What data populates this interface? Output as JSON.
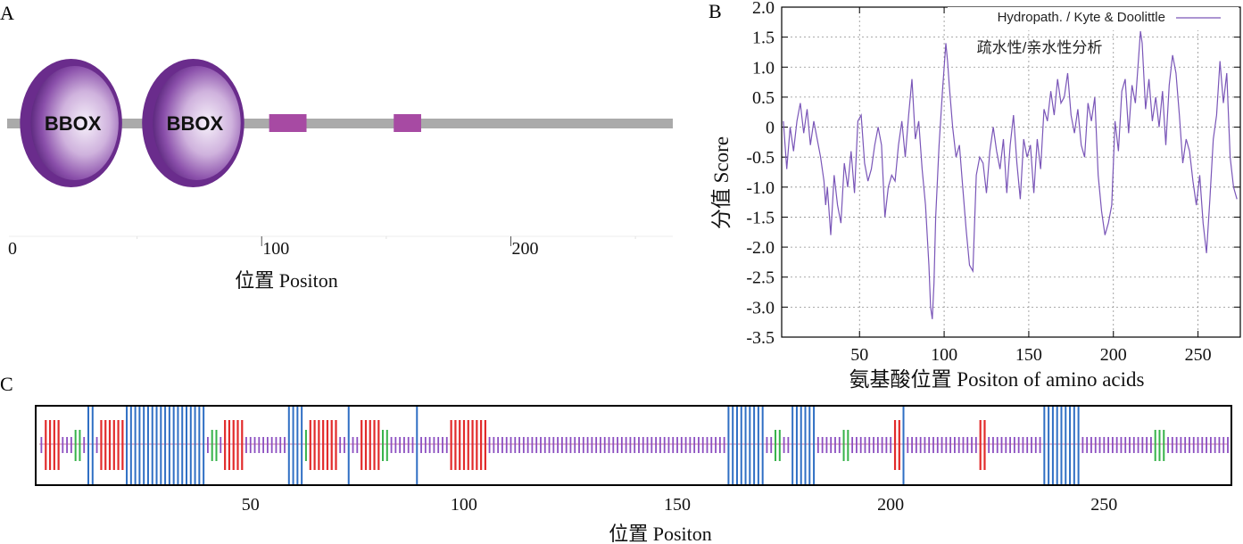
{
  "panel_letters": [
    "A",
    "B",
    "C"
  ],
  "colors": {
    "bbox_dark": "#6a2c8c",
    "bbox_light": "#f4eef8",
    "motif": "#a74aa3",
    "backbone": "#aaaaaa",
    "hydro_line": "#7a56b8",
    "coil": "#8c4fc1",
    "helix": "#2f6fc4",
    "strand": "#e22b2b",
    "turn": "#36b34a"
  },
  "chart_data": [
    {
      "type": "domain-map",
      "panel": "A",
      "xlabel": "位置 Positon",
      "xlim": [
        0,
        265
      ],
      "ticks": [
        {
          "value": 0,
          "label": "0"
        },
        {
          "value": 100,
          "label": "100"
        },
        {
          "value": 200,
          "label": "200"
        }
      ],
      "domains": [
        {
          "name": "BBOX",
          "start": 3,
          "end": 44
        },
        {
          "name": "BBOX",
          "start": 52,
          "end": 93
        }
      ],
      "motifs": [
        {
          "start": 103,
          "end": 118
        },
        {
          "start": 153,
          "end": 164
        }
      ]
    },
    {
      "type": "line",
      "panel": "B",
      "title": "疏水性/亲水性分析",
      "legend": "Hydropath. / Kyte & Doolittle",
      "legend_position": "top-right",
      "xlabel": "氨基酸位置 Positon of amino acids",
      "ylabel": "分值 Score",
      "xlim": [
        4,
        275
      ],
      "ylim": [
        -3.5,
        2.0
      ],
      "xticks": [
        50,
        100,
        150,
        200,
        250
      ],
      "yticks": [
        2.0,
        1.5,
        1.0,
        0.5,
        0,
        -0.5,
        -1.0,
        -1.5,
        -2.0,
        -2.5,
        -3.0,
        -3.5
      ],
      "ytick_labels": [
        "2.0",
        "1.5",
        "1.0",
        "0.5",
        "0",
        "-0.5",
        "-1.0",
        "-1.5",
        "-2.0",
        "-2.5",
        "-3.0",
        "-3.5"
      ],
      "grid": true,
      "series": [
        {
          "name": "Hydropath. / Kyte & Doolittle",
          "x": [
            5,
            7,
            9,
            11,
            13,
            15,
            17,
            19,
            21,
            23,
            25,
            27,
            29,
            30,
            31,
            33,
            35,
            37,
            39,
            41,
            43,
            45,
            47,
            49,
            51,
            53,
            55,
            57,
            59,
            61,
            63,
            65,
            67,
            69,
            71,
            73,
            75,
            77,
            79,
            81,
            83,
            85,
            87,
            89,
            91,
            92,
            93,
            94,
            95,
            97,
            99,
            101,
            102,
            103,
            105,
            107,
            109,
            111,
            113,
            115,
            117,
            119,
            121,
            123,
            125,
            127,
            129,
            131,
            133,
            135,
            137,
            139,
            141,
            143,
            145,
            147,
            149,
            151,
            153,
            155,
            157,
            159,
            161,
            163,
            165,
            167,
            169,
            171,
            173,
            175,
            177,
            179,
            181,
            183,
            185,
            187,
            189,
            191,
            193,
            195,
            197,
            199,
            201,
            203,
            205,
            207,
            209,
            211,
            213,
            215,
            216,
            217,
            219,
            221,
            223,
            225,
            227,
            229,
            231,
            233,
            235,
            237,
            239,
            241,
            243,
            245,
            247,
            249,
            251,
            253,
            255,
            257,
            259,
            261,
            263,
            265,
            267,
            269,
            271,
            273
          ],
          "y": [
            0.1,
            -0.7,
            0.0,
            -0.4,
            0.1,
            0.4,
            -0.1,
            0.3,
            -0.3,
            0.1,
            -0.2,
            -0.5,
            -0.9,
            -1.3,
            -1.0,
            -1.8,
            -0.8,
            -1.3,
            -1.6,
            -0.6,
            -1.0,
            -0.4,
            -1.1,
            0.1,
            0.2,
            -0.6,
            -0.9,
            -0.7,
            -0.3,
            0.0,
            -0.3,
            -1.5,
            -1.0,
            -0.8,
            -0.9,
            -0.3,
            0.1,
            -0.5,
            0.2,
            0.8,
            -0.2,
            0.1,
            -0.7,
            -1.3,
            -2.3,
            -3.0,
            -3.2,
            -2.6,
            -1.5,
            -0.3,
            0.6,
            1.4,
            1.1,
            0.7,
            0.0,
            -0.5,
            -0.3,
            -1.0,
            -1.7,
            -2.3,
            -2.4,
            -0.8,
            -0.5,
            -0.6,
            -1.1,
            -0.4,
            0.0,
            -0.4,
            -0.7,
            -0.2,
            -1.1,
            -0.3,
            0.2,
            -0.6,
            -1.2,
            -0.2,
            -0.5,
            -0.3,
            -1.1,
            -0.2,
            -0.7,
            0.3,
            0.1,
            0.6,
            0.2,
            0.8,
            0.4,
            0.5,
            0.9,
            0.2,
            -0.1,
            0.3,
            -0.3,
            -0.5,
            0.4,
            0.1,
            0.5,
            -0.8,
            -1.4,
            -1.8,
            -1.6,
            -1.3,
            0.1,
            -0.4,
            0.6,
            0.8,
            -0.1,
            0.7,
            0.4,
            1.2,
            1.6,
            1.4,
            0.3,
            0.8,
            0.1,
            0.5,
            0.0,
            0.6,
            -0.3,
            0.7,
            1.2,
            0.9,
            0.2,
            -0.6,
            -0.2,
            -0.4,
            -0.9,
            -1.3,
            -0.8,
            -1.6,
            -2.1,
            -1.2,
            -0.2,
            0.2,
            1.1,
            0.4,
            0.9,
            -0.5,
            -1.0,
            -1.2
          ]
        }
      ]
    },
    {
      "type": "secondary-structure",
      "panel": "C",
      "xlabel": "位置 Positon",
      "xlim": [
        0.5,
        279
      ],
      "xticks": [
        50,
        100,
        150,
        200,
        250
      ],
      "helix": [
        12,
        13,
        21,
        22,
        23,
        24,
        25,
        26,
        27,
        28,
        29,
        30,
        31,
        32,
        33,
        34,
        35,
        36,
        37,
        38,
        39,
        59,
        60,
        61,
        62,
        73,
        89,
        162,
        163,
        164,
        165,
        166,
        167,
        168,
        169,
        170,
        177,
        178,
        179,
        180,
        181,
        182,
        203,
        236,
        237,
        238,
        239,
        240,
        241,
        242,
        243,
        244
      ],
      "strand": [
        2,
        3,
        4,
        5,
        15,
        16,
        17,
        18,
        19,
        20,
        44,
        45,
        46,
        47,
        48,
        64,
        65,
        66,
        67,
        68,
        69,
        70,
        76,
        77,
        78,
        79,
        80,
        97,
        98,
        99,
        100,
        101,
        102,
        103,
        104,
        105,
        201,
        202,
        221,
        222
      ],
      "turn": [
        9,
        10,
        41,
        42,
        63,
        81,
        82,
        173,
        174,
        189,
        190,
        262,
        263,
        264
      ]
    }
  ]
}
